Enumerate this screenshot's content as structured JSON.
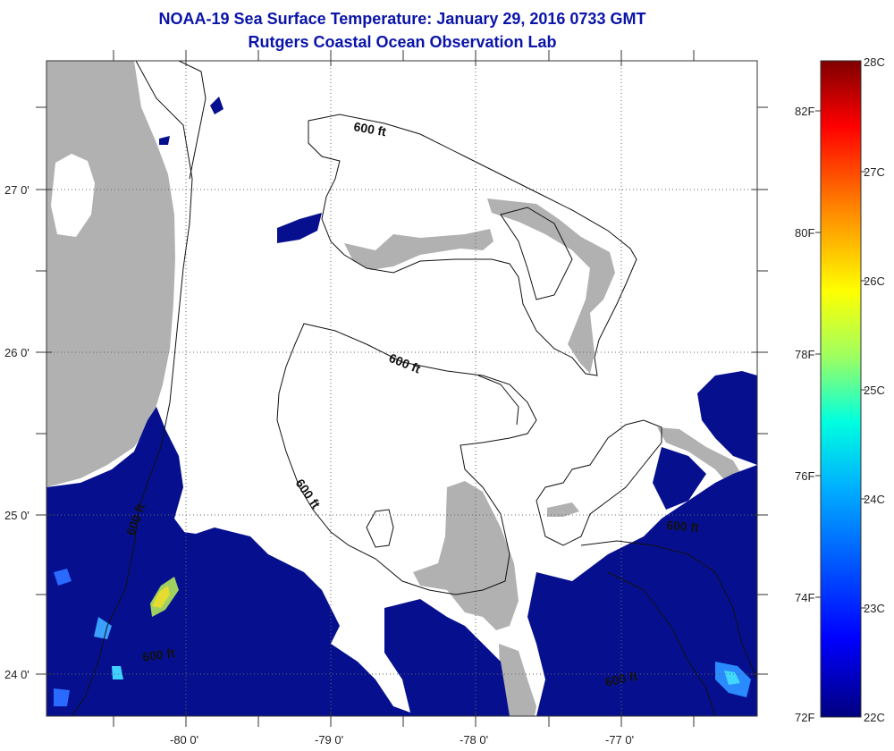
{
  "title": "NOAA-19 Sea Surface Temperature:  January 29, 2016 0733 GMT",
  "subtitle": "Rutgers Coastal Ocean Observation Lab",
  "axes": {
    "lat_labels": [
      "27 0'",
      "26 0'",
      "25 0'",
      "24 0'"
    ],
    "lon_labels": [
      "-80 0'",
      "-79 0'",
      "-78 0'",
      "-77 0'"
    ]
  },
  "contour_labels": [
    "600 ft",
    "600 ft",
    "600 ft",
    "600 ft",
    "600 ft",
    "600 ft",
    "600 ft"
  ],
  "colorbar": {
    "celsius_labels": [
      "28C",
      "27C",
      "26C",
      "25C",
      "24C",
      "23C",
      "22C"
    ],
    "fahrenheit_labels": [
      "82F",
      "80F",
      "78F",
      "76F",
      "74F",
      "72F"
    ],
    "colors": [
      "#00007f",
      "#0000ff",
      "#007fff",
      "#00ffff",
      "#7fff7f",
      "#ffff00",
      "#ff7f00",
      "#ff0000",
      "#7f0000"
    ]
  },
  "colors": {
    "land": "#b1b1b1",
    "sst_dark": "#06108f",
    "sst_mid": "#1c3cf0",
    "title": "#0a14a8"
  }
}
